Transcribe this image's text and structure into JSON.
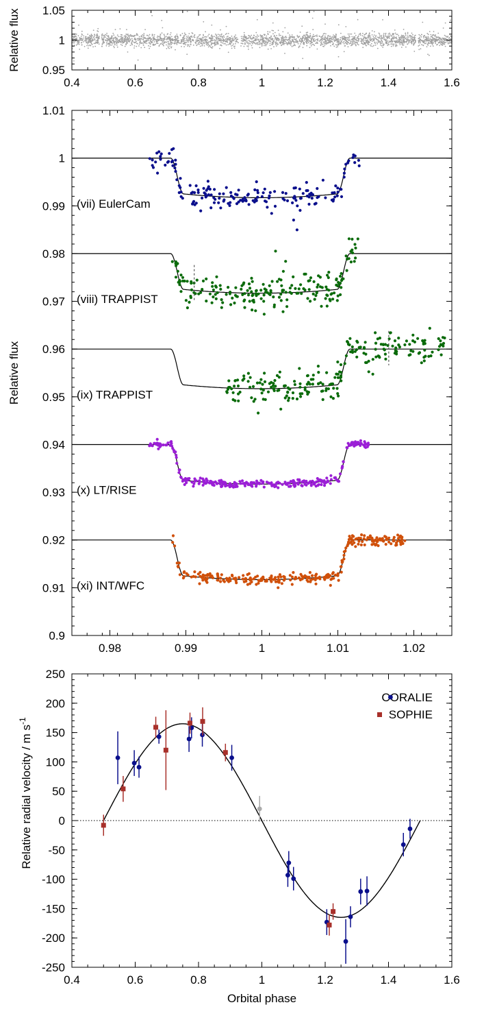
{
  "chart_data": [
    {
      "type": "scatter",
      "panel": "top",
      "ylabel": "Relative flux",
      "xlabel": "",
      "xlim": [
        0.4,
        1.6
      ],
      "ylim": [
        0.95,
        1.05
      ],
      "xticks": [
        "0.4",
        "0.6",
        "0.8",
        "1",
        "1.2",
        "1.4",
        "1.6"
      ],
      "yticks": [
        "0.95",
        "1",
        "1.05"
      ],
      "grid": false,
      "series": [
        {
          "color": "#a0a0a0",
          "description_note": "dense photometric points around relative flux 1.00 with scatter ~0.01",
          "x_range": [
            0.4,
            1.6
          ],
          "y_center": 1.0,
          "y_scatter": 0.012,
          "n_points": 2600,
          "gaps_at_phase": [
            0.49,
            0.93,
            1.49
          ]
        }
      ]
    },
    {
      "type": "line",
      "panel": "middle",
      "ylabel": "Relative flux",
      "xlabel": "",
      "xlim": [
        0.975,
        1.025
      ],
      "ylim": [
        0.9,
        1.01
      ],
      "xticks": [
        "0.98",
        "0.99",
        "1",
        "1.01",
        "1.02"
      ],
      "yticks": [
        "0.9",
        "0.91",
        "0.92",
        "0.93",
        "0.94",
        "0.95",
        "0.96",
        "0.97",
        "0.98",
        "0.99",
        "1",
        "1.01"
      ],
      "grid": false,
      "model": {
        "contact_points": [
          0.988,
          0.9897,
          1.0099,
          1.0116
        ],
        "depth": 0.0075,
        "limb_curvature": 0.0008
      },
      "series": [
        {
          "label": "(vii) EulerCam",
          "color": "#0a0f8c",
          "offset": 1.0,
          "x_range": [
            0.9852,
            1.0131
          ],
          "n_points": 180,
          "y_scatter": 0.0012
        },
        {
          "label": "(viii) TRAPPIST",
          "color": "#0b6b0b",
          "offset": 0.98,
          "x_range": [
            0.9882,
            1.0128
          ],
          "n_points": 210,
          "y_scatter": 0.0017
        },
        {
          "label": "(ix) TRAPPIST",
          "color": "#0b6b0b",
          "offset": 0.96,
          "x_range": [
            0.9953,
            1.0242
          ],
          "n_points": 230,
          "y_scatter": 0.0018
        },
        {
          "label": "(x) LT/RISE",
          "color": "#9b1fd6",
          "offset": 0.94,
          "x_range": [
            0.9852,
            1.0141
          ],
          "n_points": 300,
          "y_scatter": 0.0004
        },
        {
          "label": "(xi) INT/WFC",
          "color": "#d0500a",
          "offset": 0.92,
          "x_range": [
            0.9882,
            1.0191
          ],
          "n_points": 290,
          "y_scatter": 0.0006
        }
      ],
      "error_bars": [
        {
          "x": 0.9911,
          "y": 0.9738,
          "err": 0.0038
        },
        {
          "x": 1.0167,
          "y": 0.9602,
          "err": 0.0036
        }
      ]
    },
    {
      "type": "scatter",
      "panel": "bottom",
      "title": "",
      "xlabel": "Orbital phase",
      "ylabel": "Relative radial velocity / m s-1",
      "ylabel_main": "Relative radial velocity / m s",
      "ylabel_sup": "-1",
      "xlim": [
        0.4,
        1.6
      ],
      "ylim": [
        -250,
        250
      ],
      "xticks": [
        "0.4",
        "0.6",
        "0.8",
        "1",
        "1.2",
        "1.4",
        "1.6"
      ],
      "yticks": [
        "-250",
        "-200",
        "-150",
        "-100",
        "-50",
        "0",
        "50",
        "100",
        "150",
        "200",
        "250"
      ],
      "grid": false,
      "legend_position": "top-right",
      "model": {
        "amplitude": 165,
        "phase_start": 0.5,
        "phase_end": 1.5
      },
      "series": [
        {
          "name": "CORALIE",
          "color": "#0a0f8c",
          "marker": "circle",
          "points": [
            [
              0.545,
              107,
              45
            ],
            [
              0.597,
              98,
              22
            ],
            [
              0.612,
              91,
              18
            ],
            [
              0.675,
              143,
              12
            ],
            [
              0.77,
              139,
              22
            ],
            [
              0.778,
              158,
              18
            ],
            [
              0.812,
              146,
              20
            ],
            [
              0.905,
              107,
              22
            ],
            [
              1.082,
              -93,
              20
            ],
            [
              1.085,
              -72,
              20
            ],
            [
              1.1,
              -99,
              20
            ],
            [
              1.205,
              -173,
              22
            ],
            [
              1.265,
              -206,
              38
            ],
            [
              1.28,
              -164,
              18
            ],
            [
              1.312,
              -121,
              22
            ],
            [
              1.332,
              -120,
              25
            ],
            [
              1.447,
              -41,
              20
            ],
            [
              1.468,
              -14,
              17
            ]
          ]
        },
        {
          "name": "SOPHIE",
          "color": "#a8302a",
          "marker": "square",
          "points": [
            [
              0.5,
              -8,
              18
            ],
            [
              0.562,
              54,
              22
            ],
            [
              0.665,
              159,
              18
            ],
            [
              0.697,
              120,
              68
            ],
            [
              0.773,
              166,
              18
            ],
            [
              0.813,
              169,
              24
            ],
            [
              0.885,
              116,
              15
            ],
            [
              1.213,
              -178,
              18
            ],
            [
              1.225,
              -155,
              14
            ]
          ]
        },
        {
          "color": "#aaaaaa",
          "marker": "circle",
          "points": [
            [
              0.993,
              20,
              22
            ]
          ]
        }
      ],
      "zero_line": true
    }
  ]
}
